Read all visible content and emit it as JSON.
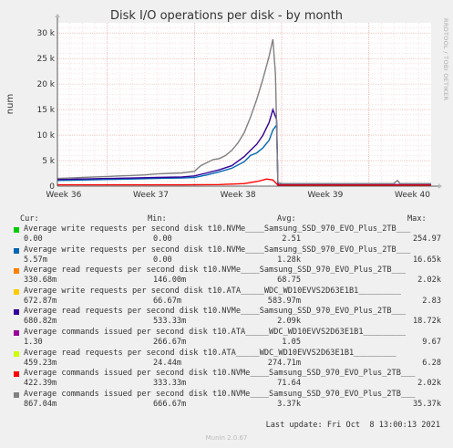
{
  "chart_data": {
    "type": "line",
    "title": "Disk I/O operations per disk - by month",
    "ylabel": "num",
    "side_text": "RRDTOOL / TOBI OETIKER",
    "ylim": [
      0,
      32000
    ],
    "yticks": [
      0,
      5000,
      10000,
      15000,
      20000,
      25000,
      30000
    ],
    "ytick_labels": [
      "0",
      "5 k",
      "10 k",
      "15 k",
      "20 k",
      "25 k",
      "30 k"
    ],
    "xlim_days": [
      0,
      30
    ],
    "xticks": [
      {
        "day": 4,
        "label": "Week 36"
      },
      {
        "day": 11,
        "label": "Week 37"
      },
      {
        "day": 18,
        "label": "Week 38"
      },
      {
        "day": 25,
        "label": "Week 39"
      },
      {
        "day": 32,
        "label": "Week 40"
      }
    ],
    "grid": true,
    "columns": {
      "cur": "Cur:",
      "min": "Min:",
      "avg": "Avg:",
      "max": "Max:"
    },
    "series": [
      {
        "name": "Average write requests per second disk t10.NVMe____Samsung_SSD_970_EVO_Plus_2TB___",
        "color": "#00cc00",
        "cur": "0.00",
        "min": "0.00",
        "avg": "2.51",
        "max": "254.97"
      },
      {
        "name": "Average write requests per second disk t10.NVMe____Samsung_SSD_970_EVO_Plus_2TB___",
        "color": "#0066b3",
        "cur": "5.57m",
        "min": "0.00",
        "avg": "1.28k",
        "max": "16.65k"
      },
      {
        "name": "Average read requests per second disk t10.NVMe____Samsung_SSD_970_EVO_Plus_2TB___",
        "color": "#ff8000",
        "cur": "330.68m",
        "min": "146.00m",
        "avg": "68.75",
        "max": "2.02k"
      },
      {
        "name": "Average write requests per second disk t10.ATA_____WDC_WD10EVVS2D63E1B1_________",
        "color": "#ffcc00",
        "cur": "672.87m",
        "min": "66.67m",
        "avg": "583.97m",
        "max": "2.83"
      },
      {
        "name": "Average read requests per second disk t10.NVMe____Samsung_SSD_970_EVO_Plus_2TB___",
        "color": "#330099",
        "cur": "680.82m",
        "min": "533.33m",
        "avg": "2.09k",
        "max": "18.72k"
      },
      {
        "name": "Average commands issued per second disk t10.ATA_____WDC_WD10EVVS2D63E1B1_________",
        "color": "#990099",
        "cur": "1.30",
        "min": "266.67m",
        "avg": "1.05",
        "max": "9.67"
      },
      {
        "name": "Average read requests per second disk t10.ATA_____WDC_WD10EVVS2D63E1B1_________",
        "color": "#ccff00",
        "cur": "459.23m",
        "min": "24.44m",
        "avg": "274.71m",
        "max": "6.28"
      },
      {
        "name": "Average commands issued per second disk t10.NVMe____Samsung_SSD_970_EVO_Plus_2TB___",
        "color": "#ff0000",
        "cur": "422.39m",
        "min": "333.33m",
        "avg": "71.64",
        "max": "2.02k"
      },
      {
        "name": "Average commands issued per second disk t10.NVMe____Samsung_SSD_970_EVO_Plus_2TB___",
        "color": "#808080",
        "cur": "867.04m",
        "min": "666.67m",
        "avg": "3.37k",
        "max": "35.37k"
      }
    ],
    "lines": {
      "gray": [
        [
          0,
          1500
        ],
        [
          1,
          1600
        ],
        [
          2,
          1700
        ],
        [
          3,
          1800
        ],
        [
          4,
          1900
        ],
        [
          5,
          2000
        ],
        [
          6,
          2100
        ],
        [
          7,
          2200
        ],
        [
          8,
          2400
        ],
        [
          9,
          2500
        ],
        [
          10,
          2600
        ],
        [
          11,
          2900
        ],
        [
          11.5,
          4000
        ],
        [
          12,
          4600
        ],
        [
          12.5,
          5200
        ],
        [
          13,
          5400
        ],
        [
          13.5,
          6000
        ],
        [
          14,
          7000
        ],
        [
          14.5,
          8500
        ],
        [
          15,
          10500
        ],
        [
          15.5,
          13500
        ],
        [
          16,
          17000
        ],
        [
          16.5,
          21000
        ],
        [
          17,
          25500
        ],
        [
          17.3,
          28800
        ],
        [
          17.5,
          22000
        ],
        [
          17.7,
          700
        ],
        [
          18,
          500
        ],
        [
          20,
          500
        ],
        [
          22,
          500
        ],
        [
          24,
          500
        ],
        [
          26,
          500
        ],
        [
          27,
          500
        ],
        [
          27.3,
          1100
        ],
        [
          27.5,
          500
        ],
        [
          30,
          500
        ]
      ],
      "purple": [
        [
          0,
          1300
        ],
        [
          2,
          1400
        ],
        [
          4,
          1500
        ],
        [
          6,
          1600
        ],
        [
          8,
          1700
        ],
        [
          10,
          1800
        ],
        [
          11,
          2000
        ],
        [
          12,
          2600
        ],
        [
          13,
          3200
        ],
        [
          14,
          4000
        ],
        [
          15,
          5800
        ],
        [
          15.5,
          7000
        ],
        [
          16,
          8200
        ],
        [
          16.5,
          10000
        ],
        [
          17,
          12500
        ],
        [
          17.3,
          15000
        ],
        [
          17.6,
          13000
        ],
        [
          17.7,
          300
        ],
        [
          20,
          300
        ],
        [
          25,
          300
        ],
        [
          30,
          300
        ]
      ],
      "blue": [
        [
          0,
          1100
        ],
        [
          2,
          1200
        ],
        [
          4,
          1300
        ],
        [
          6,
          1400
        ],
        [
          8,
          1500
        ],
        [
          10,
          1600
        ],
        [
          11,
          1700
        ],
        [
          12,
          2200
        ],
        [
          13,
          2800
        ],
        [
          14,
          3500
        ],
        [
          15,
          4800
        ],
        [
          15.5,
          6000
        ],
        [
          16,
          6500
        ],
        [
          16.5,
          7500
        ],
        [
          17,
          9000
        ],
        [
          17.3,
          11000
        ],
        [
          17.6,
          12000
        ],
        [
          17.7,
          200
        ],
        [
          20,
          200
        ],
        [
          25,
          200
        ],
        [
          30,
          200
        ]
      ],
      "red": [
        [
          0,
          250
        ],
        [
          5,
          250
        ],
        [
          10,
          250
        ],
        [
          13,
          300
        ],
        [
          15,
          500
        ],
        [
          16,
          900
        ],
        [
          16.8,
          1400
        ],
        [
          17.3,
          1200
        ],
        [
          17.7,
          200
        ],
        [
          20,
          200
        ],
        [
          25,
          200
        ],
        [
          30,
          200
        ]
      ]
    }
  },
  "footer": {
    "last_update": "Last update: Fri Oct  8 13:00:13 2021",
    "version": "Munin 2.0.67"
  }
}
